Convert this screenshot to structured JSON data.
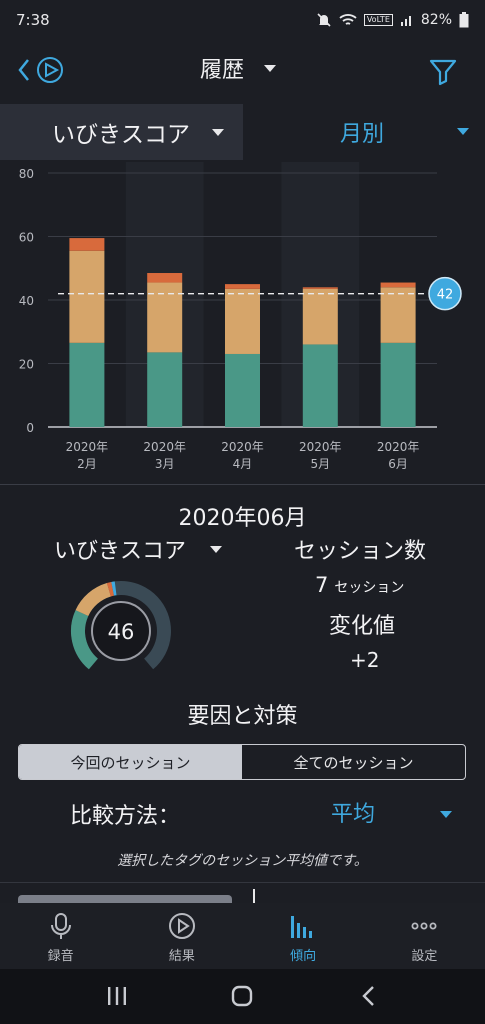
{
  "status": {
    "time": "7:38",
    "battery": "82%",
    "lte": "VoLTE"
  },
  "header": {
    "title": "履歴"
  },
  "metric_bar": {
    "metric_label": "いびきスコア",
    "period_label": "月別"
  },
  "chart_data": {
    "type": "bar",
    "categories": [
      "2020年\n2月",
      "2020年\n3月",
      "2020年\n4月",
      "2020年\n5月",
      "2020年\n6月"
    ],
    "category_lines": [
      [
        "2020年",
        "2月"
      ],
      [
        "2020年",
        "3月"
      ],
      [
        "2020年",
        "4月"
      ],
      [
        "2020年",
        "5月"
      ],
      [
        "2020年",
        "6月"
      ]
    ],
    "series": [
      {
        "color": "#4a9887",
        "values": [
          26.5,
          23.5,
          23,
          26,
          26.5
        ]
      },
      {
        "color": "#d6a56a",
        "values": [
          29,
          22,
          20.5,
          17.5,
          17.5
        ]
      },
      {
        "color": "#d86a3c",
        "values": [
          4,
          3,
          1.5,
          0.5,
          1.5
        ]
      }
    ],
    "stacked": true,
    "ylim": [
      0,
      80
    ],
    "yticks": [
      0,
      20,
      40,
      60,
      80
    ],
    "average_line": 42,
    "average_label": "42",
    "grid": true
  },
  "detail": {
    "month": "2020年06月",
    "metric_label": "いびきスコア",
    "score": "46",
    "score_value": 46,
    "gauge_segments": [
      {
        "color": "#4a9887",
        "fraction": 0.58
      },
      {
        "color": "#d6a56a",
        "fraction": 0.38
      },
      {
        "color": "#d86a3c",
        "fraction": 0.04
      }
    ],
    "gauge_accent": "#3fa9df",
    "sessions_title": "セッション数",
    "sessions_count": "7",
    "sessions_unit": "セッション",
    "change_title": "変化値",
    "change_value": "+2"
  },
  "factors": {
    "title": "要因と対策",
    "tab_current": "今回のセッション",
    "tab_all": "全てのセッション",
    "compare_label": "比較方法：",
    "compare_value": "平均",
    "note": "選択したタグのセッション平均値です。"
  },
  "bottom_nav": {
    "items": [
      {
        "label": "録音",
        "icon": "microphone-icon"
      },
      {
        "label": "結果",
        "icon": "play-circle-icon"
      },
      {
        "label": "傾向",
        "icon": "bar-chart-icon",
        "active": true
      },
      {
        "label": "設定",
        "icon": "more-dots-icon"
      }
    ]
  },
  "colors": {
    "accent": "#3fa9df",
    "background": "#1c1e24"
  }
}
